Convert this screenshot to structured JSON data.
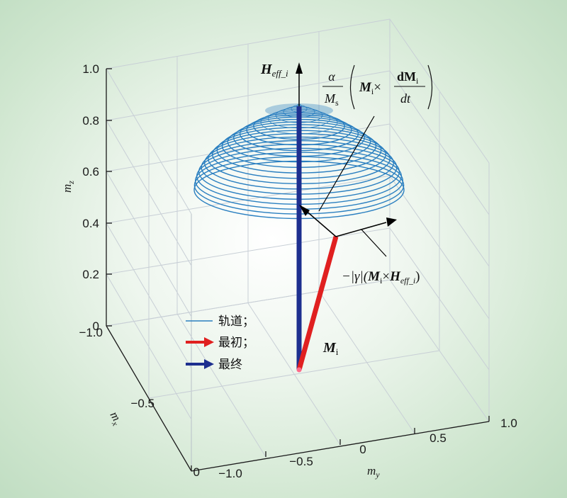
{
  "axes": {
    "z_label": "m",
    "z_label_sub": "z",
    "x_label": "m",
    "x_label_sub": "x",
    "y_label": "m",
    "y_label_sub": "y",
    "z_ticks": [
      "0",
      "0.2",
      "0.4",
      "0.6",
      "0.8",
      "1.0"
    ],
    "x_ticks": [
      "0",
      "−0.5",
      "−1.0"
    ],
    "y_ticks": [
      "−1.0",
      "−0.5",
      "0",
      "0.5",
      "1.0"
    ]
  },
  "annotations": {
    "heff_main": "H",
    "heff_sub": "eff_i",
    "damping_alpha": "α",
    "damping_Ms": "M",
    "damping_Ms_sub": "s",
    "damping_cross": "M",
    "damping_cross_sub": "i",
    "damping_times": "×",
    "damping_dM": "dM",
    "damping_dM_sub": "i",
    "damping_dt": "dt",
    "precession_prefix": "−|γ|(",
    "precession_M": "M",
    "precession_M_sub": "i",
    "precession_times": "×",
    "precession_H": "H",
    "precession_H_sub": "eff_i",
    "precession_suffix": ")",
    "mi_label": "M",
    "mi_label_sub": "i"
  },
  "legend": {
    "orbit": "轨道；",
    "initial": "最初；",
    "final": "最终"
  },
  "colors": {
    "orbit": "#2a7fc0",
    "initial": "#e02020",
    "final": "#1d2f8f",
    "grid": "#c8cfd6"
  }
}
